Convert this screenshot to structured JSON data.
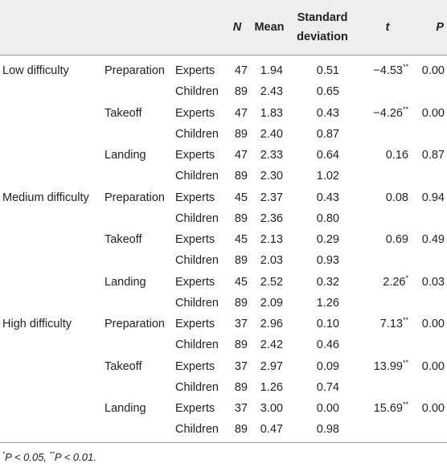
{
  "table": {
    "headers": {
      "diff": "",
      "phase": "",
      "group": "",
      "n": "N",
      "mean": "Mean",
      "sd": "Standard deviation",
      "t": "t",
      "p": "P"
    },
    "rows": [
      {
        "diff": "Low difficulty",
        "phase": "Preparation",
        "group": "Experts",
        "n": "47",
        "mean": "1.94",
        "sd": "0.51",
        "t": "−4.53",
        "t_sig": "**",
        "p": "0.00"
      },
      {
        "diff": "",
        "phase": "",
        "group": "Children",
        "n": "89",
        "mean": "2.43",
        "sd": "0.65",
        "t": "",
        "t_sig": "",
        "p": ""
      },
      {
        "diff": "",
        "phase": "Takeoff",
        "group": "Experts",
        "n": "47",
        "mean": "1.83",
        "sd": "0.43",
        "t": "−4.26",
        "t_sig": "**",
        "p": "0.00"
      },
      {
        "diff": "",
        "phase": "",
        "group": "Children",
        "n": "89",
        "mean": "2.40",
        "sd": "0.87",
        "t": "",
        "t_sig": "",
        "p": ""
      },
      {
        "diff": "",
        "phase": "Landing",
        "group": "Experts",
        "n": "47",
        "mean": "2.33",
        "sd": "0.64",
        "t": "0.16",
        "t_sig": "",
        "p": "0.87"
      },
      {
        "diff": "",
        "phase": "",
        "group": "Children",
        "n": "89",
        "mean": "2.30",
        "sd": "1.02",
        "t": "",
        "t_sig": "",
        "p": ""
      },
      {
        "diff": "Medium difficulty",
        "phase": "Preparation",
        "group": "Experts",
        "n": "45",
        "mean": "2.37",
        "sd": "0.43",
        "t": "0.08",
        "t_sig": "",
        "p": "0.94"
      },
      {
        "diff": "",
        "phase": "",
        "group": "Children",
        "n": "89",
        "mean": "2.36",
        "sd": "0.80",
        "t": "",
        "t_sig": "",
        "p": ""
      },
      {
        "diff": "",
        "phase": "Takeoff",
        "group": "Experts",
        "n": "45",
        "mean": "2.13",
        "sd": "0.29",
        "t": "0.69",
        "t_sig": "",
        "p": "0.49"
      },
      {
        "diff": "",
        "phase": "",
        "group": "Children",
        "n": "89",
        "mean": "2.03",
        "sd": "0.93",
        "t": "",
        "t_sig": "",
        "p": ""
      },
      {
        "diff": "",
        "phase": "Landing",
        "group": "Experts",
        "n": "45",
        "mean": "2.52",
        "sd": "0.32",
        "t": "2.26",
        "t_sig": "*",
        "p": "0.03"
      },
      {
        "diff": "",
        "phase": "",
        "group": "Children",
        "n": "89",
        "mean": "2.09",
        "sd": "1.26",
        "t": "",
        "t_sig": "",
        "p": ""
      },
      {
        "diff": "High difficulty",
        "phase": "Preparation",
        "group": "Experts",
        "n": "37",
        "mean": "2.96",
        "sd": "0.10",
        "t": "7.13",
        "t_sig": "**",
        "p": "0.00"
      },
      {
        "diff": "",
        "phase": "",
        "group": "Children",
        "n": "89",
        "mean": "2.42",
        "sd": "0.46",
        "t": "",
        "t_sig": "",
        "p": ""
      },
      {
        "diff": "",
        "phase": "Takeoff",
        "group": "Experts",
        "n": "37",
        "mean": "2.97",
        "sd": "0.09",
        "t": "13.99",
        "t_sig": "**",
        "p": "0.00"
      },
      {
        "diff": "",
        "phase": "",
        "group": "Children",
        "n": "89",
        "mean": "1.26",
        "sd": "0.74",
        "t": "",
        "t_sig": "",
        "p": ""
      },
      {
        "diff": "",
        "phase": "Landing",
        "group": "Experts",
        "n": "37",
        "mean": "3.00",
        "sd": "0.00",
        "t": "15.69",
        "t_sig": "**",
        "p": "0.00"
      },
      {
        "diff": "",
        "phase": "",
        "group": "Children",
        "n": "89",
        "mean": "0.47",
        "sd": "0.98",
        "t": "",
        "t_sig": "",
        "p": ""
      }
    ]
  },
  "footnote": {
    "mark1": "*",
    "text1": "P < 0.05, ",
    "mark2": "**",
    "text2": "P < 0.01."
  }
}
